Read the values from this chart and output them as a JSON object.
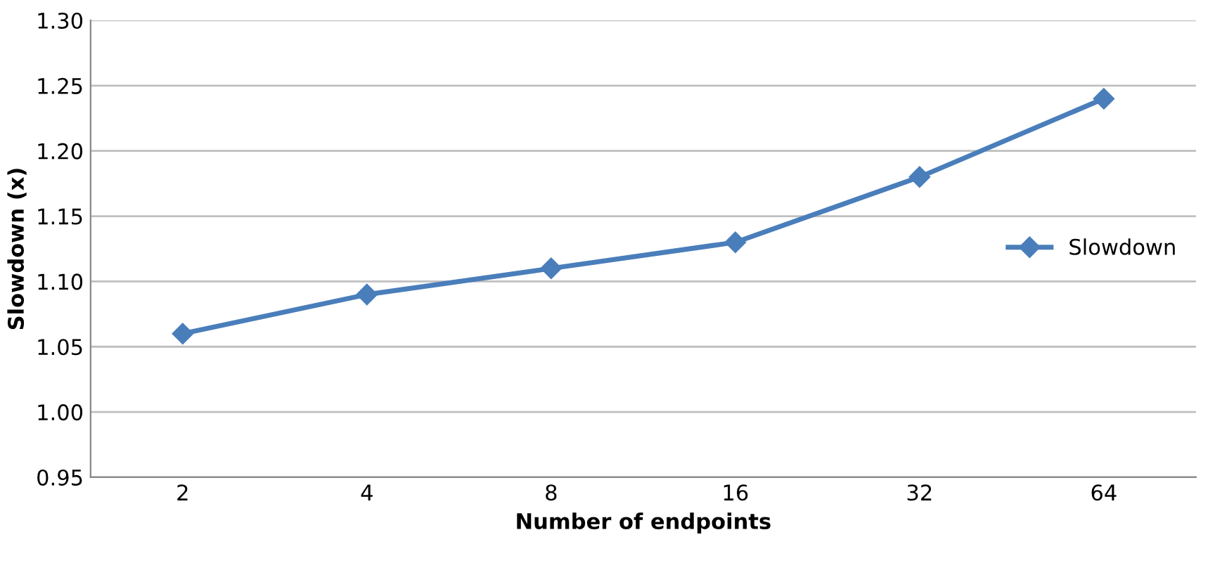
{
  "chart_data": {
    "type": "line",
    "xlabel": "Number of endpoints",
    "ylabel": "Slowdown (x)",
    "categories": [
      "2",
      "4",
      "8",
      "16",
      "32",
      "64"
    ],
    "series": [
      {
        "name": "Slowdown",
        "color": "#4a7ebb",
        "values": [
          1.06,
          1.09,
          1.11,
          1.13,
          1.18,
          1.24
        ]
      }
    ],
    "ylim": [
      0.95,
      1.3
    ],
    "yticks": [
      {
        "value": 0.95,
        "label": "0.95"
      },
      {
        "value": 1.0,
        "label": "1.00"
      },
      {
        "value": 1.05,
        "label": "1.05"
      },
      {
        "value": 1.1,
        "label": "1.10"
      },
      {
        "value": 1.15,
        "label": "1.15"
      },
      {
        "value": 1.2,
        "label": "1.20"
      },
      {
        "value": 1.25,
        "label": "1.25"
      },
      {
        "value": 1.3,
        "label": "1.30"
      }
    ],
    "grid": "y",
    "legend": "right",
    "marker": "diamond",
    "line_style": "solid"
  }
}
